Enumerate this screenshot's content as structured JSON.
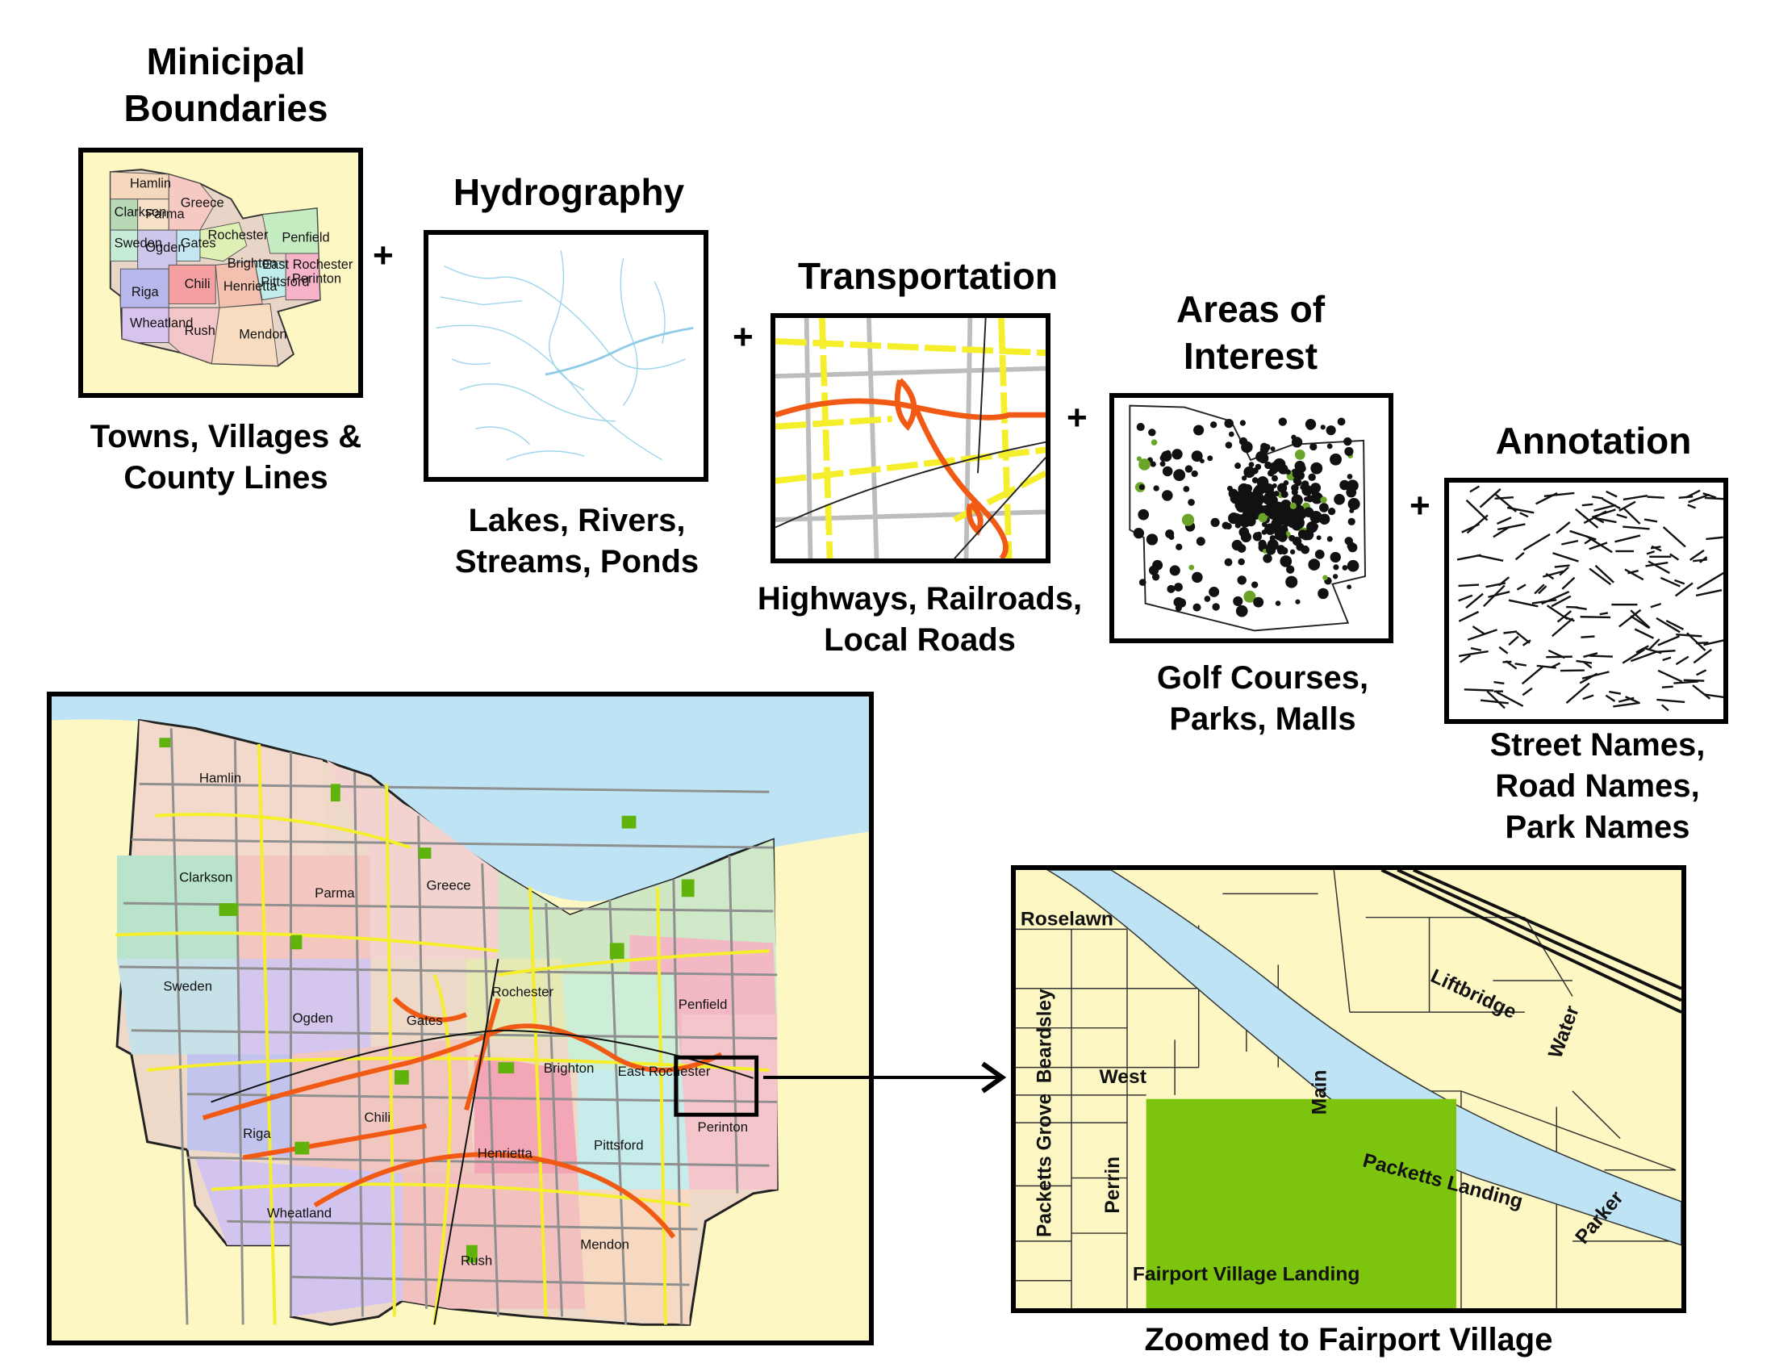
{
  "layers": {
    "municipal": {
      "heading_line1": "Minicipal",
      "heading_line2": "Boundaries",
      "caption_line1": "Towns, Villages &",
      "caption_line2": "County Lines"
    },
    "hydrography": {
      "heading": "Hydrography",
      "caption_line1": "Lakes, Rivers,",
      "caption_line2": "Streams, Ponds"
    },
    "transportation": {
      "heading": "Transportation",
      "caption_line1": "Highways, Railroads,",
      "caption_line2": "Local Roads"
    },
    "areas": {
      "heading_line1": "Areas of",
      "heading_line2": "Interest",
      "caption_line1": "Golf Courses,",
      "caption_line2": "Parks, Malls"
    },
    "annotation": {
      "heading": "Annotation",
      "caption_line1": "Street Names,",
      "caption_line2": "Road Names,",
      "caption_line3": "Park Names"
    }
  },
  "plus_sign": "+",
  "county_map": {
    "towns": [
      "Hamlin",
      "Clarkson",
      "Parma",
      "Greece",
      "Sweden",
      "Ogden",
      "Gates",
      "Rochester",
      "Penfield",
      "Brighton",
      "East Rochester",
      "Chili",
      "Riga",
      "Henrietta",
      "Pittsford",
      "Perinton",
      "Wheatland",
      "Mendon",
      "Rush"
    ]
  },
  "thumbnail_towns": [
    "Hamlin",
    "Clarkson",
    "Parma",
    "Greece",
    "Sweden",
    "Ogden",
    "Gates",
    "Rochester",
    "Penfield",
    "Brighton",
    "East Rochester",
    "Chili",
    "Riga",
    "Henrietta",
    "Pittsford",
    "Perinton",
    "Wheatland",
    "Rush",
    "Mendon"
  ],
  "zoom_map": {
    "caption": "Zoomed to Fairport Village",
    "streets": {
      "roselawn": "Roselawn",
      "packetts_grove": "Packetts Grove",
      "beardsley": "Beardsley",
      "west": "West",
      "perrin": "Perrin",
      "main": "Main",
      "liftbridge": "Liftbridge",
      "water": "Water",
      "packetts_landing": "Packetts Landing",
      "parker": "Parker",
      "fairport_village_landing": "Fairport Village Landing"
    }
  },
  "colors": {
    "land": "#fdf7c3",
    "water": "#bde3f5",
    "highway": "#f05a14",
    "major_road": "#f5ee2a",
    "local_road": "#9a9a9a",
    "park": "#7dc40e",
    "frame": "#000000"
  }
}
